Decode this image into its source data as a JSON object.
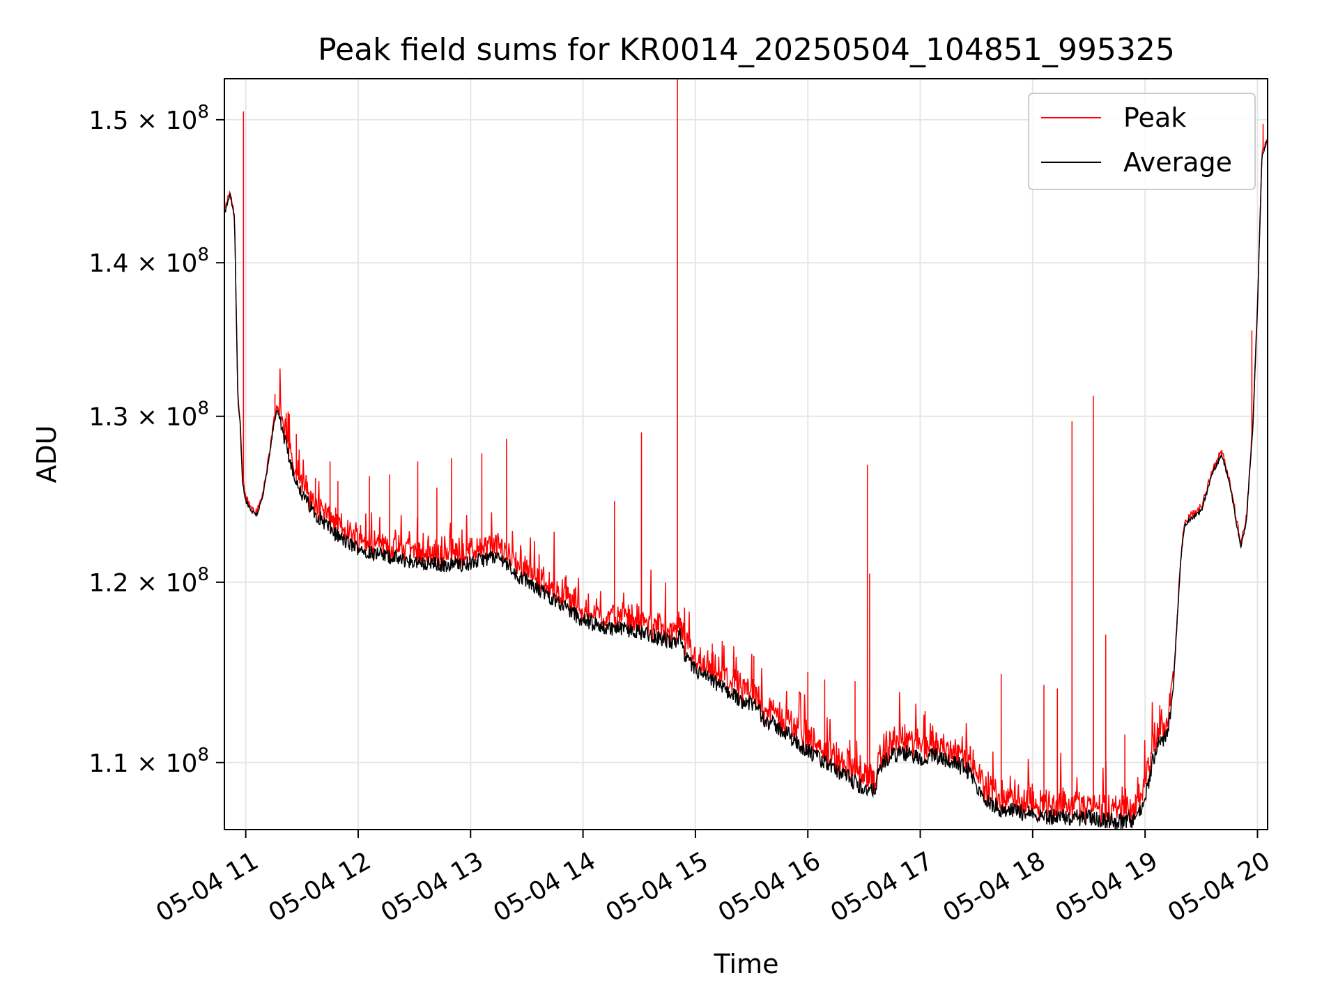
{
  "chart_data": {
    "type": "line",
    "title": "Peak field sums for KR0014_20250504_104851_995325",
    "xlabel": "Time",
    "ylabel": "ADU",
    "x_unit": "hours on 05-04",
    "xlim": [
      10.81,
      20.09
    ],
    "ylim": [
      106500000,
      153000000
    ],
    "y_scale": "log",
    "grid": true,
    "legend_position": "upper right",
    "x_ticks": [
      {
        "value": 11,
        "label": "05-04 11"
      },
      {
        "value": 12,
        "label": "05-04 12"
      },
      {
        "value": 13,
        "label": "05-04 13"
      },
      {
        "value": 14,
        "label": "05-04 14"
      },
      {
        "value": 15,
        "label": "05-04 15"
      },
      {
        "value": 16,
        "label": "05-04 16"
      },
      {
        "value": 17,
        "label": "05-04 17"
      },
      {
        "value": 18,
        "label": "05-04 18"
      },
      {
        "value": 19,
        "label": "05-04 19"
      },
      {
        "value": 20,
        "label": "05-04 20"
      }
    ],
    "y_ticks": [
      {
        "value": 110000000,
        "mantissa": "1.1",
        "exponent": "8"
      },
      {
        "value": 120000000,
        "mantissa": "1.2",
        "exponent": "8"
      },
      {
        "value": 130000000,
        "mantissa": "1.3",
        "exponent": "8"
      },
      {
        "value": 140000000,
        "mantissa": "1.4",
        "exponent": "8"
      },
      {
        "value": 150000000,
        "mantissa": "1.5",
        "exponent": "8"
      }
    ],
    "series": [
      {
        "name": "Peak",
        "color": "#ff0000"
      },
      {
        "name": "Average",
        "color": "#000000"
      }
    ],
    "average_baseline": [
      [
        10.81,
        143.3
      ],
      [
        10.86,
        144.7
      ],
      [
        10.9,
        143.0
      ],
      [
        10.93,
        131.0
      ],
      [
        10.95,
        129.5
      ],
      [
        10.97,
        126.0
      ],
      [
        11.0,
        124.8
      ],
      [
        11.05,
        124.2
      ],
      [
        11.1,
        124.0
      ],
      [
        11.15,
        125.0
      ],
      [
        11.2,
        127.0
      ],
      [
        11.25,
        129.5
      ],
      [
        11.28,
        130.5
      ],
      [
        11.33,
        129.0
      ],
      [
        11.4,
        127.0
      ],
      [
        11.5,
        125.2
      ],
      [
        11.6,
        124.2
      ],
      [
        11.7,
        123.5
      ],
      [
        11.8,
        122.8
      ],
      [
        11.9,
        122.3
      ],
      [
        12.0,
        122.0
      ],
      [
        12.2,
        121.6
      ],
      [
        12.4,
        121.3
      ],
      [
        12.6,
        121.1
      ],
      [
        12.8,
        121.0
      ],
      [
        13.0,
        121.1
      ],
      [
        13.2,
        121.5
      ],
      [
        13.3,
        121.3
      ],
      [
        13.4,
        120.5
      ],
      [
        13.6,
        119.6
      ],
      [
        13.8,
        118.8
      ],
      [
        14.0,
        117.8
      ],
      [
        14.2,
        117.4
      ],
      [
        14.4,
        117.3
      ],
      [
        14.6,
        117.0
      ],
      [
        14.82,
        116.5
      ],
      [
        14.86,
        117.0
      ],
      [
        14.9,
        115.8
      ],
      [
        15.0,
        115.0
      ],
      [
        15.2,
        114.2
      ],
      [
        15.4,
        113.4
      ],
      [
        15.55,
        113.0
      ],
      [
        15.6,
        112.4
      ],
      [
        15.8,
        111.6
      ],
      [
        16.0,
        110.6
      ],
      [
        16.2,
        109.8
      ],
      [
        16.4,
        109.0
      ],
      [
        16.52,
        108.6
      ],
      [
        16.58,
        108.4
      ],
      [
        16.65,
        109.8
      ],
      [
        16.75,
        110.4
      ],
      [
        16.9,
        110.5
      ],
      [
        17.0,
        110.2
      ],
      [
        17.15,
        110.4
      ],
      [
        17.3,
        110.0
      ],
      [
        17.45,
        109.5
      ],
      [
        17.5,
        108.6
      ],
      [
        17.6,
        108.0
      ],
      [
        17.7,
        107.6
      ],
      [
        17.9,
        107.4
      ],
      [
        18.1,
        107.2
      ],
      [
        18.3,
        107.1
      ],
      [
        18.5,
        107.1
      ],
      [
        18.65,
        107.0
      ],
      [
        18.8,
        106.9
      ],
      [
        18.88,
        107.0
      ],
      [
        18.95,
        107.4
      ],
      [
        19.0,
        108.0
      ],
      [
        19.05,
        109.6
      ],
      [
        19.1,
        110.8
      ],
      [
        19.2,
        111.6
      ],
      [
        19.25,
        114.0
      ],
      [
        19.32,
        121.5
      ],
      [
        19.35,
        123.3
      ],
      [
        19.4,
        123.7
      ],
      [
        19.5,
        124.2
      ],
      [
        19.6,
        126.5
      ],
      [
        19.68,
        127.6
      ],
      [
        19.75,
        126.0
      ],
      [
        19.85,
        122.0
      ],
      [
        19.9,
        123.5
      ],
      [
        19.96,
        129.5
      ],
      [
        20.0,
        137.0
      ],
      [
        20.04,
        147.5
      ],
      [
        20.09,
        148.5
      ]
    ],
    "peak_spikes": [
      [
        10.98,
        150.6
      ],
      [
        11.26,
        131.4
      ],
      [
        11.36,
        130.2
      ],
      [
        11.45,
        128.9
      ],
      [
        11.62,
        126.2
      ],
      [
        11.75,
        127.2
      ],
      [
        11.82,
        126.0
      ],
      [
        12.1,
        126.3
      ],
      [
        12.28,
        126.4
      ],
      [
        12.53,
        127.2
      ],
      [
        12.7,
        125.6
      ],
      [
        12.83,
        127.4
      ],
      [
        13.1,
        127.7
      ],
      [
        13.32,
        128.6
      ],
      [
        13.7,
        120.6
      ],
      [
        13.85,
        120.4
      ],
      [
        14.28,
        124.8
      ],
      [
        14.52,
        129.0
      ],
      [
        14.84,
        153.0
      ],
      [
        15.15,
        116.5
      ],
      [
        15.52,
        115.8
      ],
      [
        16.0,
        114.9
      ],
      [
        16.15,
        114.5
      ],
      [
        16.42,
        114.4
      ],
      [
        16.53,
        127.0
      ],
      [
        16.55,
        120.5
      ],
      [
        17.72,
        114.8
      ],
      [
        18.1,
        114.2
      ],
      [
        18.22,
        114.0
      ],
      [
        18.35,
        129.7
      ],
      [
        18.54,
        131.3
      ],
      [
        18.65,
        117.0
      ],
      [
        18.82,
        111.5
      ],
      [
        19.95,
        135.5
      ],
      [
        20.05,
        149.7
      ]
    ]
  }
}
